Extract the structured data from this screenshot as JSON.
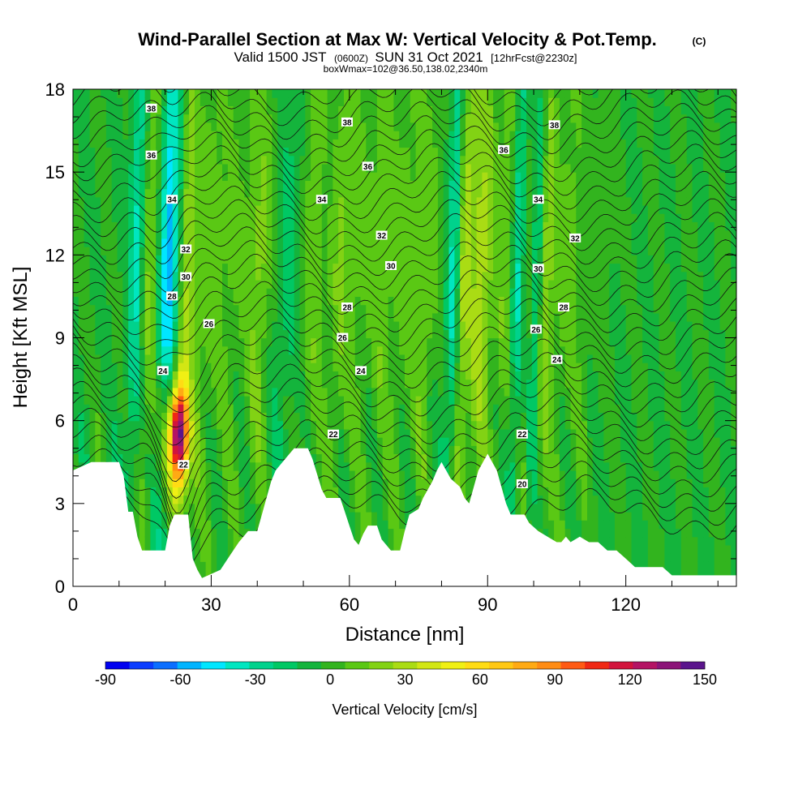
{
  "header": {
    "title": "Wind-Parallel Section at Max W: Vertical Velocity & Pot.Temp.",
    "copyright": "(C)",
    "valid_prefix": "Valid 1500 JST",
    "valid_zulu": "(0600Z)",
    "valid_date": "SUN 31 Oct 2021",
    "forecast": "[12hrFcst@2230z]",
    "box_info": "boxWmax=102@36.50,138.02,2340m"
  },
  "chart_data": {
    "type": "heatmap",
    "xlabel": "Distance [nm]",
    "ylabel": "Height [Kft MSL]",
    "xlim": [
      0,
      144
    ],
    "ylim": [
      0,
      18
    ],
    "x_ticks": [
      0,
      30,
      60,
      90,
      120
    ],
    "y_ticks": [
      0,
      3,
      6,
      9,
      12,
      15,
      18
    ],
    "x_tick_labels": [
      "0",
      "30",
      "60",
      "90",
      "120"
    ],
    "y_tick_labels": [
      "0",
      "3",
      "6",
      "9",
      "12",
      "15",
      "18"
    ],
    "colorbar": {
      "label": "Vertical Velocity [cm/s]",
      "range": [
        -90,
        150
      ],
      "step": 10,
      "tick_values": [
        -90,
        -60,
        -30,
        0,
        30,
        60,
        90,
        120,
        150
      ],
      "tick_labels": [
        "-90",
        "-60",
        "-30",
        "0",
        "30",
        "60",
        "90",
        "120",
        "150"
      ],
      "colors": [
        "#0000f0",
        "#0a3cff",
        "#0a6eff",
        "#00b4ff",
        "#00e6ff",
        "#00e6c0",
        "#00d28c",
        "#00c864",
        "#14b43c",
        "#32b41e",
        "#5ac814",
        "#82d214",
        "#aadc14",
        "#d2e614",
        "#f0f014",
        "#ffdc14",
        "#ffc814",
        "#ffaa14",
        "#ff8c14",
        "#ff5a14",
        "#f02814",
        "#d2143c",
        "#b41464",
        "#8c1478",
        "#5a148c"
      ]
    },
    "terrain_kft": [
      [
        0,
        4.2
      ],
      [
        4,
        4.5
      ],
      [
        10,
        4.5
      ],
      [
        11,
        4.0
      ],
      [
        12,
        2.7
      ],
      [
        13,
        2.7
      ],
      [
        14,
        1.8
      ],
      [
        15,
        1.3
      ],
      [
        20,
        1.3
      ],
      [
        21,
        2.2
      ],
      [
        22,
        2.6
      ],
      [
        25,
        2.6
      ],
      [
        26,
        1.0
      ],
      [
        27,
        0.6
      ],
      [
        28,
        0.3
      ],
      [
        32,
        0.6
      ],
      [
        34,
        1.1
      ],
      [
        36,
        1.6
      ],
      [
        38,
        2.0
      ],
      [
        40,
        2.0
      ],
      [
        41,
        2.6
      ],
      [
        42,
        3.2
      ],
      [
        43,
        3.8
      ],
      [
        44,
        4.2
      ],
      [
        46,
        4.6
      ],
      [
        48,
        5.0
      ],
      [
        51,
        5.0
      ],
      [
        52,
        4.6
      ],
      [
        54,
        3.5
      ],
      [
        55,
        3.2
      ],
      [
        58,
        3.2
      ],
      [
        59,
        2.7
      ],
      [
        60,
        2.2
      ],
      [
        61,
        1.7
      ],
      [
        62,
        1.5
      ],
      [
        63,
        1.9
      ],
      [
        64,
        2.2
      ],
      [
        66,
        2.2
      ],
      [
        67,
        1.7
      ],
      [
        69,
        1.3
      ],
      [
        71,
        1.3
      ],
      [
        72,
        2.0
      ],
      [
        73,
        2.6
      ],
      [
        75,
        2.8
      ],
      [
        76,
        3.2
      ],
      [
        78,
        3.8
      ],
      [
        79,
        4.2
      ],
      [
        80,
        4.5
      ],
      [
        81,
        4.2
      ],
      [
        82,
        3.9
      ],
      [
        84,
        3.6
      ],
      [
        85,
        3.2
      ],
      [
        86,
        3.0
      ],
      [
        87,
        3.6
      ],
      [
        88,
        4.2
      ],
      [
        90,
        4.8
      ],
      [
        91,
        4.5
      ],
      [
        92,
        4.2
      ],
      [
        93,
        3.6
      ],
      [
        94,
        3.0
      ],
      [
        95,
        2.6
      ],
      [
        98,
        2.6
      ],
      [
        99,
        2.3
      ],
      [
        101,
        2.0
      ],
      [
        103,
        1.8
      ],
      [
        105,
        1.6
      ],
      [
        106,
        1.6
      ],
      [
        107,
        1.8
      ],
      [
        108,
        1.6
      ],
      [
        110,
        1.8
      ],
      [
        112,
        1.6
      ],
      [
        114,
        1.6
      ],
      [
        116,
        1.3
      ],
      [
        118,
        1.3
      ],
      [
        120,
        1.0
      ],
      [
        122,
        0.7
      ],
      [
        128,
        0.7
      ],
      [
        130,
        0.4
      ],
      [
        144,
        0.4
      ]
    ],
    "updraft_core": {
      "x": 23,
      "y": 5.5,
      "max_cm_s": 102
    },
    "contour_labels": [
      {
        "x": 17,
        "y": 17.3,
        "text": "38"
      },
      {
        "x": 17,
        "y": 15.6,
        "text": "36"
      },
      {
        "x": 21.5,
        "y": 14.0,
        "text": "34"
      },
      {
        "x": 24.5,
        "y": 12.2,
        "text": "32"
      },
      {
        "x": 24.5,
        "y": 11.2,
        "text": "30"
      },
      {
        "x": 21.5,
        "y": 10.5,
        "text": "28"
      },
      {
        "x": 29.5,
        "y": 9.5,
        "text": "26"
      },
      {
        "x": 19.5,
        "y": 7.8,
        "text": "24"
      },
      {
        "x": 24,
        "y": 4.4,
        "text": "22"
      },
      {
        "x": 59.5,
        "y": 16.8,
        "text": "38"
      },
      {
        "x": 64,
        "y": 15.2,
        "text": "36"
      },
      {
        "x": 54,
        "y": 14.0,
        "text": "34"
      },
      {
        "x": 67,
        "y": 12.7,
        "text": "32"
      },
      {
        "x": 69,
        "y": 11.6,
        "text": "30"
      },
      {
        "x": 59.5,
        "y": 10.1,
        "text": "28"
      },
      {
        "x": 58.5,
        "y": 9.0,
        "text": "26"
      },
      {
        "x": 62.5,
        "y": 7.8,
        "text": "24"
      },
      {
        "x": 56.5,
        "y": 5.5,
        "text": "22"
      },
      {
        "x": 104.5,
        "y": 16.7,
        "text": "38"
      },
      {
        "x": 93.5,
        "y": 15.8,
        "text": "36"
      },
      {
        "x": 101,
        "y": 14.0,
        "text": "34"
      },
      {
        "x": 109,
        "y": 12.6,
        "text": "32"
      },
      {
        "x": 101,
        "y": 11.5,
        "text": "30"
      },
      {
        "x": 106.5,
        "y": 10.1,
        "text": "28"
      },
      {
        "x": 100.5,
        "y": 9.3,
        "text": "26"
      },
      {
        "x": 105,
        "y": 8.2,
        "text": "24"
      },
      {
        "x": 97.5,
        "y": 5.5,
        "text": "22"
      },
      {
        "x": 97.5,
        "y": 3.7,
        "text": "20"
      }
    ]
  }
}
